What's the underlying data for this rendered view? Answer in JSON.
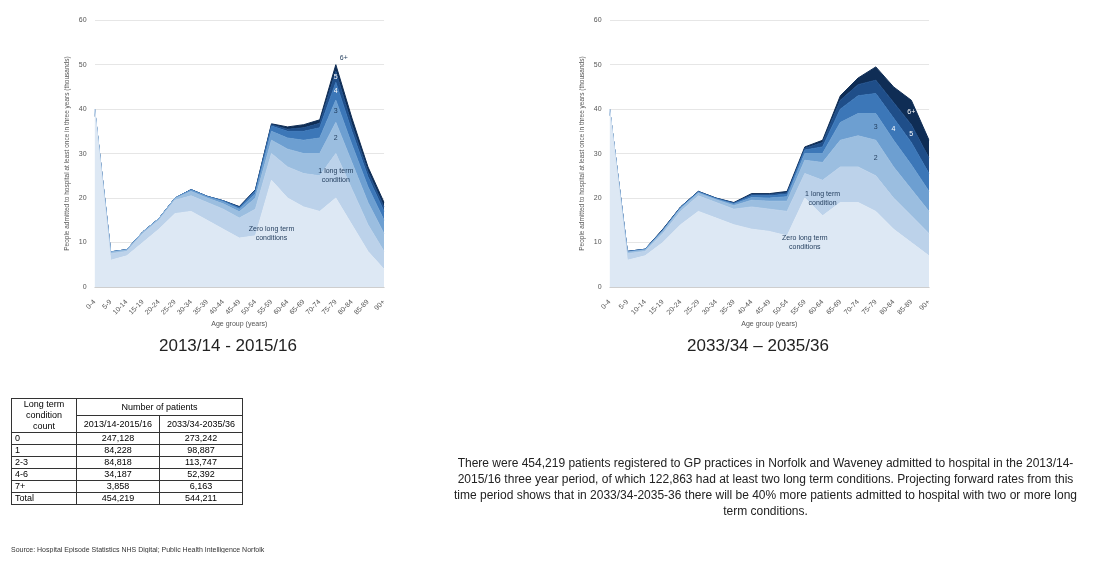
{
  "chart_data": [
    {
      "type": "area",
      "stacked": true,
      "title": "2013/14 - 2015/16",
      "xlabel": "Age group (years)",
      "ylabel": "People admitted to hospital at least once in three years (thousands)",
      "categories": [
        "0-4",
        "5-9",
        "10-14",
        "15-19",
        "20-24",
        "25-29",
        "30-34",
        "35-39",
        "40-44",
        "45-49",
        "50-54",
        "55-59",
        "60-64",
        "65-69",
        "70-74",
        "75-79",
        "80-84",
        "85-89",
        "90+"
      ],
      "ylim": [
        0,
        60
      ],
      "yticks": [
        0,
        10,
        20,
        30,
        40,
        50,
        60
      ],
      "grid": "y",
      "legend": false,
      "series": [
        {
          "name": "Zero long term conditions",
          "color": "#dde8f4",
          "values": [
            40,
            6,
            7,
            10,
            13,
            16.5,
            17,
            15,
            13,
            11,
            11.5,
            24,
            20,
            18,
            17,
            20,
            14,
            8,
            4
          ]
        },
        {
          "name": "1 long term condition",
          "color": "#bcd2ea",
          "values": [
            0,
            1.5,
            1,
            2,
            2,
            3,
            3.5,
            4,
            4.5,
            4.5,
            6,
            6,
            7,
            7.5,
            8,
            10,
            8,
            6,
            4
          ]
        },
        {
          "name": "2",
          "color": "#9bbee0",
          "values": [
            0,
            0.3,
            0.3,
            0.3,
            0.3,
            0.4,
            1,
            1,
            1.2,
            1.4,
            2.5,
            3,
            4,
            4.5,
            5,
            7,
            6,
            5,
            4
          ]
        },
        {
          "name": "3",
          "color": "#6d9fd1",
          "values": [
            0,
            0.1,
            0.1,
            0.1,
            0.1,
            0.1,
            0.3,
            0.3,
            0.5,
            0.6,
            1,
            2,
            2.5,
            3,
            3.5,
            5,
            4,
            3.5,
            3
          ]
        },
        {
          "name": "4",
          "color": "#3c77b8",
          "values": [
            0,
            0,
            0,
            0,
            0,
            0,
            0.1,
            0.1,
            0.2,
            0.3,
            0.6,
            1.2,
            1.5,
            2,
            2.3,
            4,
            3,
            2.3,
            2
          ]
        },
        {
          "name": "5",
          "color": "#1f4e89",
          "values": [
            0,
            0,
            0,
            0,
            0,
            0,
            0,
            0,
            0,
            0.2,
            0.2,
            0.3,
            0.5,
            0.8,
            1,
            2.5,
            1.5,
            1.2,
            1
          ]
        },
        {
          "name": "6+",
          "color": "#0f2d55",
          "values": [
            0,
            0,
            0,
            0,
            0,
            0,
            0,
            0,
            0,
            0.1,
            0.1,
            0.2,
            0.5,
            0.7,
            0.8,
            1.5,
            1.5,
            1,
            1
          ]
        }
      ]
    },
    {
      "type": "area",
      "stacked": true,
      "title": "2033/34 – 2035/36",
      "xlabel": "Age group (years)",
      "ylabel": "People admitted to hospital at least once in three years (thousands)",
      "categories": [
        "0-4",
        "5-9",
        "10-14",
        "15-19",
        "20-24",
        "25-29",
        "30-34",
        "35-39",
        "40-44",
        "45-49",
        "50-54",
        "55-59",
        "60-64",
        "65-69",
        "70-74",
        "75-79",
        "80-84",
        "85-89",
        "90+"
      ],
      "ylim": [
        0,
        60
      ],
      "yticks": [
        0,
        10,
        20,
        30,
        40,
        50,
        60
      ],
      "grid": "y",
      "legend": false,
      "series": [
        {
          "name": "Zero long term conditions",
          "color": "#dde8f4",
          "values": [
            40,
            6,
            7,
            10,
            14,
            17,
            15.5,
            14,
            13,
            12.5,
            11.5,
            20,
            16,
            19,
            19,
            17,
            13,
            10,
            7
          ]
        },
        {
          "name": "1 long term condition",
          "color": "#bcd2ea",
          "values": [
            0,
            1.5,
            1,
            2,
            3,
            3.5,
            3.5,
            3.5,
            5,
            5,
            5.5,
            5.5,
            8,
            8,
            8,
            8,
            7,
            6,
            5
          ]
        },
        {
          "name": "2",
          "color": "#9bbee0",
          "values": [
            0,
            0.3,
            0.3,
            0.5,
            0.6,
            0.6,
            0.6,
            0.8,
            1.5,
            1.8,
            2.3,
            3,
            4,
            6,
            7,
            8,
            7,
            6,
            5
          ]
        },
        {
          "name": "3",
          "color": "#6d9fd1",
          "values": [
            0,
            0.1,
            0.1,
            0.2,
            0.2,
            0.2,
            0.2,
            0.3,
            0.6,
            0.7,
            1,
            1.5,
            2,
            4,
            5,
            6,
            6,
            5.5,
            4.5
          ]
        },
        {
          "name": "4",
          "color": "#3c77b8",
          "values": [
            0,
            0.1,
            0.1,
            0.1,
            0.1,
            0.1,
            0.1,
            0.2,
            0.4,
            0.5,
            0.6,
            0.8,
            1.5,
            3,
            4,
            4.5,
            5,
            5,
            4
          ]
        },
        {
          "name": "5",
          "color": "#1f4e89",
          "values": [
            0,
            0,
            0,
            0.1,
            0.1,
            0.1,
            0.1,
            0.1,
            0.3,
            0.3,
            0.3,
            0.4,
            1,
            2,
            2.5,
            3,
            3.5,
            4,
            3.5
          ]
        },
        {
          "name": "6+",
          "color": "#0f2d55",
          "values": [
            0,
            0,
            0,
            0.1,
            0,
            0,
            0,
            0.1,
            0.2,
            0.2,
            0.3,
            0.3,
            0.5,
            1,
            1.5,
            3,
            3.5,
            5.5,
            4
          ]
        }
      ]
    },
    {
      "type": "other",
      "title": "Number of patients",
      "xlabel": "Long term condition count",
      "categories": [
        "0",
        "1",
        "2-3",
        "4-6",
        "7+",
        "Total"
      ],
      "series": [
        {
          "name": "2013/14-2015/16",
          "values": [
            247128,
            84228,
            84818,
            34187,
            3858,
            454219
          ],
          "value_labels": [
            "247,128",
            "84,228",
            "84,818",
            "34,187",
            "3,858",
            "454,219"
          ]
        },
        {
          "name": "2033/34-2035/36",
          "values": [
            273242,
            98887,
            113747,
            52392,
            6163,
            544211
          ],
          "value_labels": [
            "273,242",
            "98,887",
            "113,747",
            "52,392",
            "6,163",
            "544,211"
          ]
        }
      ],
      "annotations": [
        "There were 454,219 patients registered to GP practices in Norfolk and Waveney admitted to hospital in the 2013/14-2015/16 three year period, of which 122,863 had at least two long term conditions. Projecting forward rates from this time period shows that in 2033/34-2035-36 there will be 40% more patients admitted to hospital with two or more long term conditions.",
        "Source: Hospital Episode Statistics NHS Digital; Public Health Intelligence Norfolk"
      ]
    }
  ]
}
